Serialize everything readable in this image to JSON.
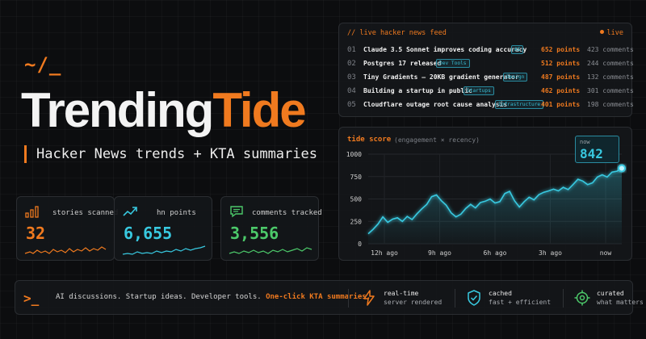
{
  "hero": {
    "logo_mark": "~/_",
    "brand_part1": "Trending",
    "brand_part2": "Tide",
    "tagline": "Hacker News trends + KTA summaries"
  },
  "stats": [
    {
      "label": "stories scanned",
      "value": "32",
      "color": "#f07a1f",
      "icon": "bar-chart-icon"
    },
    {
      "label": "hn points",
      "value": "6,655",
      "color": "#38c9e0",
      "icon": "trending-up-icon"
    },
    {
      "label": "comments tracked",
      "value": "3,556",
      "color": "#4cc96a",
      "icon": "comment-icon"
    }
  ],
  "feed": {
    "title": "// live hacker news feed",
    "live_label": "live",
    "items": [
      {
        "num": "01",
        "title": "Claude 3.5 Sonnet improves coding accuracy",
        "tag": "AI",
        "points": "652 points",
        "comments": "423 comments"
      },
      {
        "num": "02",
        "title": "Postgres 17 released",
        "tag": "Dev Tools",
        "points": "512 points",
        "comments": "244 comments"
      },
      {
        "num": "03",
        "title": "Tiny Gradients – 20KB gradient generator",
        "tag": "Design",
        "points": "487 points",
        "comments": "132 comments"
      },
      {
        "num": "04",
        "title": "Building a startup in public",
        "tag": "Startups",
        "points": "462 points",
        "comments": "301 comments"
      },
      {
        "num": "05",
        "title": "Cloudflare outage root cause analysis",
        "tag": "Infrastructure",
        "points": "401 points",
        "comments": "198 comments"
      }
    ]
  },
  "tide": {
    "title": "tide score",
    "subtitle": "(engagement × recency)",
    "now_label": "now",
    "now_value": "842"
  },
  "chart_data": {
    "type": "line",
    "title": "tide score",
    "subtitle": "(engagement × recency)",
    "xlabel": "",
    "ylabel": "",
    "ylim": [
      0,
      1000
    ],
    "yticks": [
      0,
      250,
      500,
      750,
      1000
    ],
    "x_tick_labels": [
      "12h ago",
      "9h ago",
      "6h ago",
      "3h ago",
      "now"
    ],
    "grid": true,
    "line_color": "#38c9e0",
    "series": [
      {
        "values": [
          112,
          160,
          220,
          300,
          240,
          275,
          290,
          250,
          305,
          270,
          335,
          390,
          440,
          525,
          545,
          480,
          430,
          345,
          300,
          330,
          395,
          440,
          400,
          460,
          475,
          500,
          455,
          470,
          560,
          585,
          480,
          410,
          470,
          520,
          490,
          548,
          575,
          590,
          610,
          590,
          630,
          605,
          660,
          720,
          700,
          660,
          680,
          745,
          770,
          745,
          800,
          810,
          842
        ]
      }
    ]
  },
  "footer": {
    "prompt": ">_",
    "text_main": "AI discussions. Startup ideas. Developer tools.",
    "text_highlight": "One-click KTA summaries.",
    "features": [
      {
        "title": "real-time",
        "sub": "server rendered",
        "icon": "lightning-icon"
      },
      {
        "title": "cached",
        "sub": "fast + efficient",
        "icon": "shield-check-icon"
      },
      {
        "title": "curated",
        "sub": "what matters",
        "icon": "target-icon"
      }
    ]
  },
  "colors": {
    "accent": "#f07a1f",
    "cyan": "#38c9e0",
    "green": "#4cc96a",
    "background": "#0c0d0f"
  }
}
